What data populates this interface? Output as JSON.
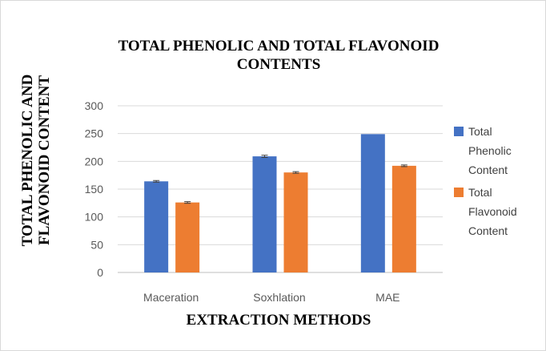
{
  "chart_data": {
    "type": "bar",
    "title_lines": [
      "TOTAL PHENOLIC AND TOTAL FLAVONOID",
      "CONTENTS"
    ],
    "xlabel": "EXTRACTION METHODS",
    "ylabel_lines": [
      "TOTAL PHENOLIC AND",
      "FLAVONOID CONTENT"
    ],
    "categories": [
      "Maceration",
      "Soxhlation",
      "MAE"
    ],
    "ylim": [
      0,
      300
    ],
    "yticks": [
      "0",
      "50",
      "100",
      "150",
      "200",
      "250",
      "300"
    ],
    "grid": true,
    "legend_position": "right",
    "series": [
      {
        "name": "Total Phenolic Content",
        "legend_lines": [
          "Total",
          "Phenolic",
          "Content"
        ],
        "color": "#4472c4",
        "values": [
          164,
          209,
          249
        ],
        "errors": [
          1.5,
          2,
          0
        ]
      },
      {
        "name": "Total Flavonoid Content",
        "legend_lines": [
          "Total",
          "Flavonoid",
          "Content"
        ],
        "color": "#ed7d31",
        "values": [
          126,
          180,
          192
        ],
        "errors": [
          1.5,
          1.5,
          1.5
        ]
      }
    ]
  }
}
